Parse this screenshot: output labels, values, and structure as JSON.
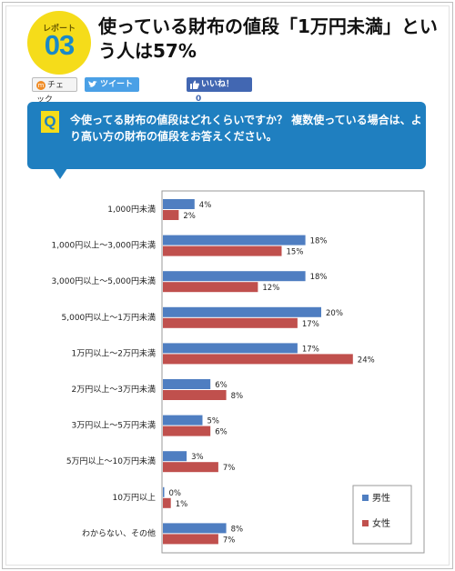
{
  "header": {
    "badge_label": "レポート",
    "badge_number": "03",
    "title": "使っている財布の値段「1万円未満」という人は57%"
  },
  "social": {
    "check_label": "チェック",
    "tweet_label": "ツイート",
    "like_label": "いいね！",
    "like_count": "0"
  },
  "question": {
    "icon_letter": "Q",
    "text": "今使ってる財布の値段はどれくらいですか？ 複数使っている場合は、より高い方の財布の値段をお答えください。"
  },
  "colors": {
    "male": "#4f7ec1",
    "female": "#c0504d",
    "accent_blue": "#1f7fc0",
    "badge_yellow": "#f5dc1a"
  },
  "chart_data": {
    "type": "bar",
    "orientation": "horizontal",
    "categories": [
      "1,000円未満",
      "1,000円以上～3,000円未満",
      "3,000円以上～5,000円未満",
      "5,000円以上～1万円未満",
      "1万円以上～2万円未満",
      "2万円以上～3万円未満",
      "3万円以上～5万円未満",
      "5万円以上～10万円未満",
      "10万円以上",
      "わからない、その他"
    ],
    "series": [
      {
        "name": "男性",
        "values": [
          4,
          18,
          18,
          20,
          17,
          6,
          5,
          3,
          0,
          8
        ]
      },
      {
        "name": "女性",
        "values": [
          2,
          15,
          12,
          17,
          24,
          8,
          6,
          7,
          1,
          7
        ]
      }
    ],
    "value_suffix": "%",
    "xlim": [
      0,
      30
    ],
    "legend_position": "bottom-right",
    "grid": false
  }
}
